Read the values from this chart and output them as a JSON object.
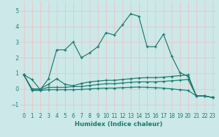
{
  "xlabel": "Humidex (Indice chaleur)",
  "bg_color": "#cce8e8",
  "grid_color": "#e8c8c8",
  "line_color": "#1a7a6e",
  "xlim": [
    -0.5,
    23.5
  ],
  "ylim": [
    -1.5,
    5.6
  ],
  "yticks": [
    -1,
    0,
    1,
    2,
    3,
    4,
    5
  ],
  "xticks": [
    0,
    1,
    2,
    3,
    4,
    5,
    6,
    7,
    8,
    9,
    10,
    11,
    12,
    13,
    14,
    15,
    16,
    17,
    18,
    19,
    20,
    21,
    22,
    23
  ],
  "series": [
    [
      0.9,
      0.6,
      -0.05,
      0.65,
      2.5,
      2.5,
      3.0,
      2.0,
      2.3,
      2.7,
      3.6,
      3.45,
      4.1,
      4.8,
      4.65,
      2.7,
      2.7,
      3.5,
      2.1,
      1.05,
      0.8,
      -0.45,
      -0.45,
      -0.55
    ],
    [
      0.9,
      0.0,
      0.0,
      0.3,
      0.65,
      0.3,
      0.2,
      0.35,
      0.45,
      0.5,
      0.55,
      0.55,
      0.6,
      0.65,
      0.7,
      0.72,
      0.72,
      0.75,
      0.8,
      0.85,
      0.9,
      -0.45,
      -0.45,
      -0.55
    ],
    [
      0.9,
      -0.05,
      -0.05,
      0.1,
      0.1,
      0.1,
      0.15,
      0.15,
      0.22,
      0.28,
      0.33,
      0.33,
      0.38,
      0.42,
      0.45,
      0.45,
      0.45,
      0.48,
      0.52,
      0.56,
      0.6,
      -0.45,
      -0.45,
      -0.55
    ],
    [
      0.9,
      -0.1,
      -0.1,
      -0.05,
      -0.05,
      -0.05,
      -0.05,
      -0.03,
      0.0,
      0.03,
      0.05,
      0.05,
      0.08,
      0.1,
      0.12,
      0.1,
      0.08,
      0.05,
      0.0,
      -0.05,
      -0.1,
      -0.45,
      -0.45,
      -0.55
    ]
  ]
}
